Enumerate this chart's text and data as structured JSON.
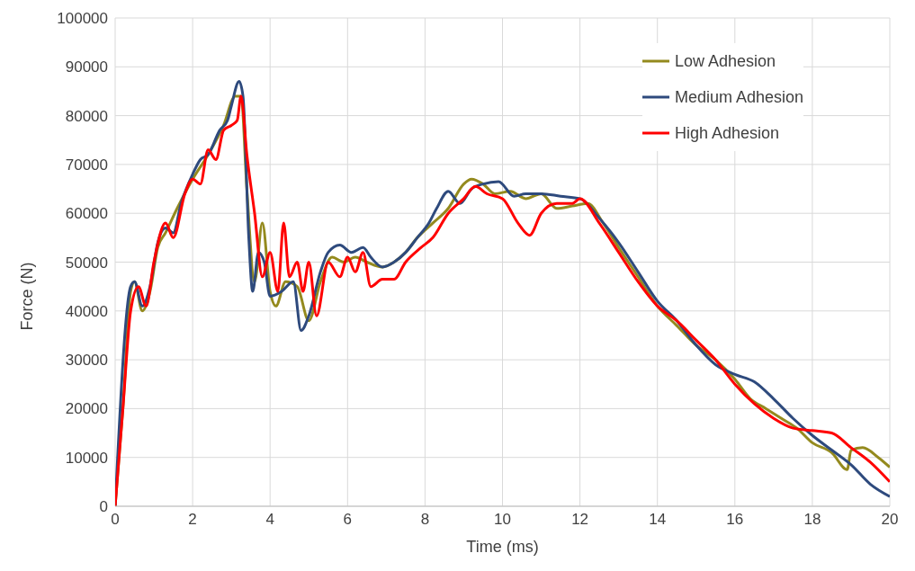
{
  "chart_data": {
    "type": "line",
    "xlabel": "Time (ms)",
    "ylabel": "Force (N)",
    "xlim": [
      0,
      20
    ],
    "xticks": [
      0,
      2,
      4,
      6,
      8,
      10,
      12,
      14,
      16,
      18,
      20
    ],
    "ylim": [
      0,
      100000
    ],
    "yticks": [
      0,
      10000,
      20000,
      30000,
      40000,
      50000,
      60000,
      70000,
      80000,
      90000,
      100000
    ],
    "grid": true,
    "legend": "top right",
    "marker": "none",
    "line_style": "solid",
    "series": [
      {
        "name": "Low Adhesion",
        "color": "#948a1e",
        "x": [
          0,
          0.2,
          0.4,
          0.5,
          0.7,
          0.9,
          1.1,
          1.3,
          1.6,
          2.0,
          2.4,
          2.8,
          3.1,
          3.25,
          3.4,
          3.6,
          3.8,
          4.0,
          4.15,
          4.4,
          4.7,
          5.0,
          5.3,
          5.6,
          5.9,
          6.2,
          6.5,
          6.9,
          7.2,
          7.5,
          7.8,
          8.2,
          8.6,
          9.0,
          9.2,
          9.5,
          9.8,
          10.2,
          10.6,
          11.0,
          11.4,
          11.8,
          12.2,
          12.6,
          13,
          13.5,
          14,
          14.5,
          15,
          15.5,
          16,
          16.4,
          16.8,
          17.2,
          17.6,
          18,
          18.5,
          18.9,
          19.0,
          19.3,
          19.7,
          20
        ],
        "values": [
          0,
          20000,
          44000,
          46000,
          40000,
          44000,
          53000,
          56000,
          61000,
          67000,
          72000,
          78000,
          84000,
          84000,
          65000,
          46000,
          58000,
          44000,
          41000,
          46000,
          45000,
          38000,
          46000,
          51000,
          50000,
          51000,
          50000,
          49000,
          50000,
          52000,
          55000,
          58000,
          61000,
          66000,
          67000,
          66000,
          64000,
          64500,
          63000,
          64000,
          61000,
          61500,
          62000,
          58000,
          53000,
          47000,
          41000,
          37000,
          33000,
          30000,
          26000,
          22000,
          20000,
          18000,
          16000,
          13000,
          11000,
          7500,
          11500,
          12000,
          10000,
          8000
        ]
      },
      {
        "name": "Medium Adhesion",
        "color": "#2e4a7d",
        "x": [
          0,
          0.4,
          0.5,
          0.7,
          0.9,
          1.1,
          1.3,
          1.5,
          1.7,
          2.0,
          2.2,
          2.4,
          2.7,
          2.9,
          3.0,
          3.2,
          3.3,
          3.45,
          3.55,
          3.7,
          3.85,
          4.0,
          4.3,
          4.6,
          4.8,
          5.0,
          5.3,
          5.5,
          5.8,
          6.1,
          6.4,
          6.6,
          6.9,
          7.2,
          7.5,
          7.8,
          8.1,
          8.3,
          8.6,
          8.9,
          9.2,
          9.5,
          9.9,
          10.3,
          10.6,
          11,
          11.5,
          12,
          12.5,
          13,
          13.5,
          14,
          14.5,
          15,
          15.5,
          16,
          16.5,
          17,
          17.5,
          18,
          18.5,
          19,
          19.5,
          20
        ],
        "values": [
          0,
          45000,
          46000,
          41000,
          45000,
          54000,
          57000,
          56000,
          62000,
          68000,
          71000,
          72000,
          77000,
          79000,
          82000,
          87000,
          84000,
          55000,
          44000,
          52000,
          50000,
          43000,
          44000,
          46000,
          36000,
          39000,
          48000,
          52000,
          53500,
          52000,
          53000,
          51000,
          49000,
          50000,
          52000,
          55000,
          58000,
          61000,
          64500,
          62000,
          65000,
          66000,
          66500,
          63500,
          64000,
          64000,
          63500,
          63000,
          59000,
          54000,
          48000,
          42000,
          38000,
          33000,
          29000,
          27000,
          25500,
          22000,
          18000,
          14500,
          11500,
          8500,
          4500,
          2000
        ]
      },
      {
        "name": "High Adhesion",
        "color": "#ff0000",
        "x": [
          0,
          0.2,
          0.4,
          0.6,
          0.8,
          1.0,
          1.3,
          1.5,
          1.8,
          2.0,
          2.2,
          2.4,
          2.6,
          2.8,
          3.0,
          3.15,
          3.25,
          3.4,
          3.6,
          3.8,
          4.0,
          4.2,
          4.35,
          4.5,
          4.7,
          4.85,
          5.0,
          5.2,
          5.5,
          5.8,
          6.0,
          6.2,
          6.4,
          6.6,
          6.9,
          7.2,
          7.5,
          7.9,
          8.2,
          8.6,
          9.0,
          9.3,
          9.6,
          10.0,
          10.4,
          10.7,
          11.0,
          11.4,
          11.8,
          12.0,
          12.5,
          13,
          13.5,
          14,
          14.5,
          15,
          15.5,
          16,
          16.5,
          17,
          17.5,
          18,
          18.5,
          19,
          19.5,
          20
        ],
        "values": [
          0,
          20000,
          40000,
          45000,
          41000,
          50000,
          58000,
          55000,
          64000,
          67000,
          66000,
          73000,
          71000,
          77000,
          78000,
          79000,
          84000,
          72000,
          60000,
          47000,
          52000,
          44000,
          58000,
          47000,
          50000,
          44000,
          50000,
          39000,
          50000,
          47000,
          51000,
          48000,
          52000,
          45000,
          46500,
          46500,
          50000,
          53000,
          55000,
          60000,
          63000,
          65500,
          64000,
          63000,
          58000,
          55500,
          60000,
          62000,
          62000,
          63000,
          58000,
          52000,
          46000,
          41000,
          38000,
          34000,
          30000,
          25000,
          21000,
          18000,
          16000,
          15500,
          15000,
          12000,
          9000,
          5000
        ]
      }
    ]
  }
}
